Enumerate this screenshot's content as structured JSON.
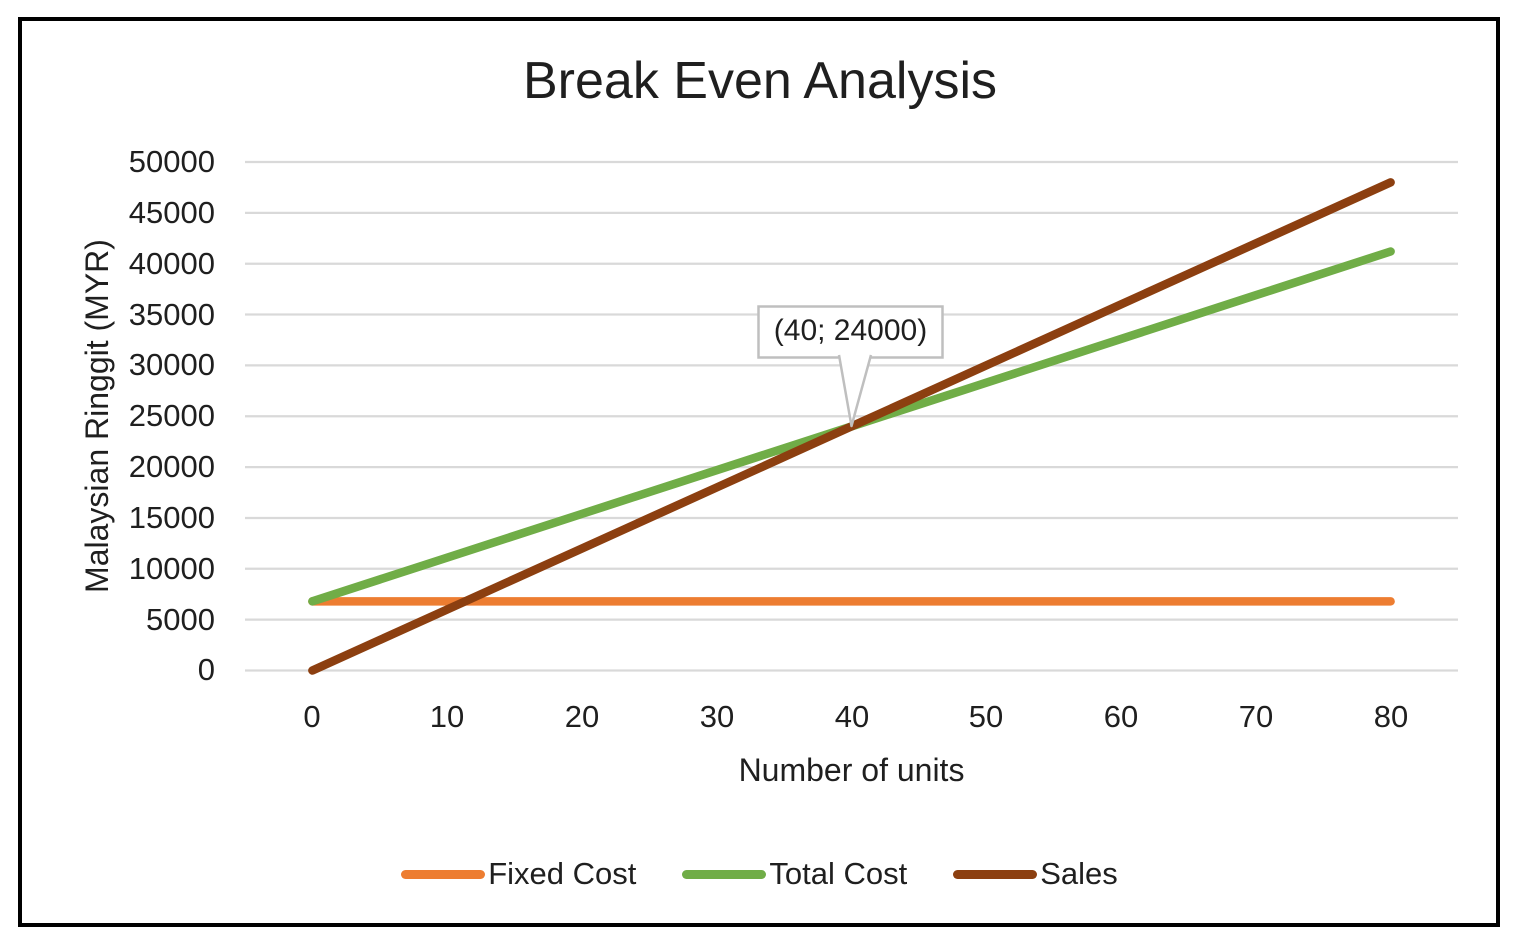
{
  "chart_data": {
    "type": "line",
    "title": "Break Even Analysis",
    "xlabel": "Number of units",
    "ylabel": "Malaysian Ringgit (MYR)",
    "categories": [
      0,
      10,
      20,
      30,
      40,
      50,
      60,
      70,
      80
    ],
    "x_tick_labels": [
      "0",
      "10",
      "20",
      "30",
      "40",
      "50",
      "60",
      "70",
      "80"
    ],
    "y_ticks": [
      0,
      5000,
      10000,
      15000,
      20000,
      25000,
      30000,
      35000,
      40000,
      45000,
      50000
    ],
    "y_tick_labels": [
      "0",
      "5000",
      "10000",
      "15000",
      "20000",
      "25000",
      "30000",
      "35000",
      "40000",
      "45000",
      "50000"
    ],
    "ylim": [
      0,
      50000
    ],
    "grid": "horizontal",
    "legend_position": "bottom",
    "series": [
      {
        "name": "Fixed Cost",
        "color": "#ED7D31",
        "values": [
          6800,
          6800,
          6800,
          6800,
          6800,
          6800,
          6800,
          6800,
          6800
        ]
      },
      {
        "name": "Total Cost",
        "color": "#70AD47",
        "values": [
          6800,
          11100,
          15400,
          19700,
          24000,
          28300,
          32600,
          36900,
          41200
        ]
      },
      {
        "name": "Sales",
        "color": "#8C3F10",
        "values": [
          0,
          6000,
          12000,
          18000,
          24000,
          30000,
          36000,
          42000,
          48000
        ]
      }
    ],
    "annotation": {
      "text": "(40; 24000)",
      "x": 40,
      "y": 24000
    }
  },
  "legend": {
    "items": [
      {
        "label": "Fixed Cost"
      },
      {
        "label": "Total Cost"
      },
      {
        "label": "Sales"
      }
    ]
  },
  "colors": {
    "background": "#FFFFFF",
    "frame_border": "#000000",
    "gridline": "#D9D9D9",
    "callout_border": "#BFBFBF",
    "text": "#1F1F1F"
  }
}
